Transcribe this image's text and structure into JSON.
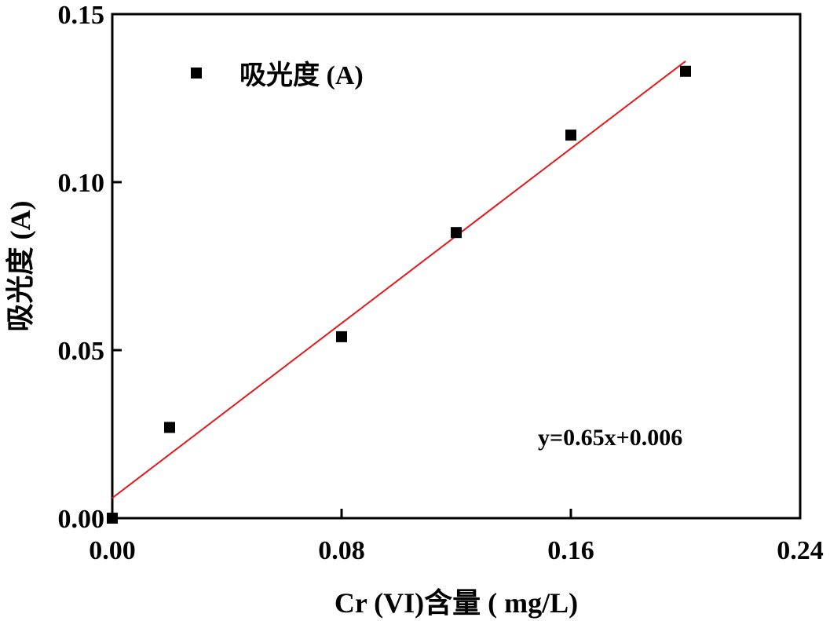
{
  "chart_data": {
    "type": "scatter",
    "title": "",
    "xlabel": "Cr (VI)含量 ( mg/L)",
    "ylabel": "吸光度 (A)",
    "xlim": [
      0,
      0.24
    ],
    "ylim": [
      0,
      0.15
    ],
    "xticks": [
      0,
      0.08,
      0.16,
      0.24
    ],
    "xtick_labels": [
      "0.00",
      "0.08",
      "0.16",
      "0.24"
    ],
    "yticks": [
      0,
      0.05,
      0.1,
      0.15
    ],
    "ytick_labels": [
      "0.00",
      "0.05",
      "0.10",
      "0.15"
    ],
    "series": [
      {
        "name": "吸光度 (A)",
        "marker": "square",
        "color": "#000000",
        "x": [
          0.0,
          0.02,
          0.08,
          0.12,
          0.16,
          0.2
        ],
        "y": [
          0.0,
          0.027,
          0.054,
          0.085,
          0.114,
          0.133
        ]
      }
    ],
    "fit_line": {
      "color": "#e31a1c",
      "slope": 0.65,
      "intercept": 0.006,
      "x_range": [
        0.0,
        0.2
      ],
      "equation": "y=0.65x+0.006"
    },
    "legend": {
      "position": "top-left",
      "entries": [
        "吸光度 (A)"
      ]
    },
    "grid": false
  }
}
